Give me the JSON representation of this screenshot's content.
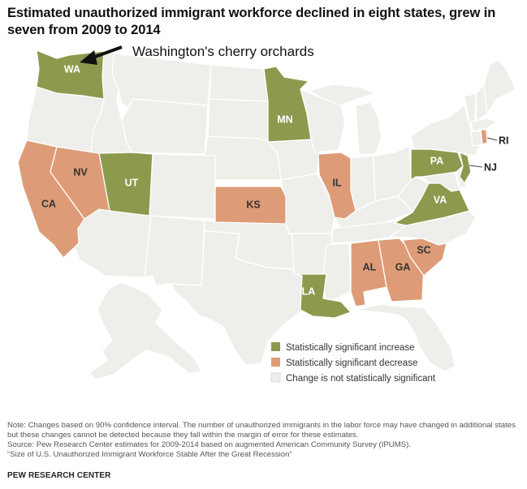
{
  "title": "Estimated unauthorized immigrant workforce declined in eight states, grew in seven from 2009 to 2014",
  "callout": "Washington's cherry orchards",
  "colors": {
    "increase": "#8b9a4d",
    "decrease": "#dd9c77",
    "not_significant": "#eeeeea"
  },
  "states": {
    "increase": [
      "WA",
      "UT",
      "MN",
      "PA",
      "NJ",
      "VA",
      "LA"
    ],
    "decrease": [
      "CA",
      "NV",
      "KS",
      "IL",
      "AL",
      "GA",
      "SC",
      "RI"
    ]
  },
  "legend": {
    "increase": "Statistically significant increase",
    "decrease": "Statistically significant decrease",
    "not_significant": "Change is not statistically significant"
  },
  "footer": {
    "note": "Note: Changes based on 90% confidence interval. The number of unauthorized immigrants in the labor force may have changed in additional states but these changes cannot be detected because they fall within the margin of error for these estimates.",
    "source": "Source: Pew Research Center estimates for 2009-2014 based on augmented American Community Survey (IPUMS).",
    "report": "“Size of U.S. Unauthorized Immigrant Workforce Stable After the Great Recession”",
    "brand": "PEW RESEARCH CENTER"
  }
}
